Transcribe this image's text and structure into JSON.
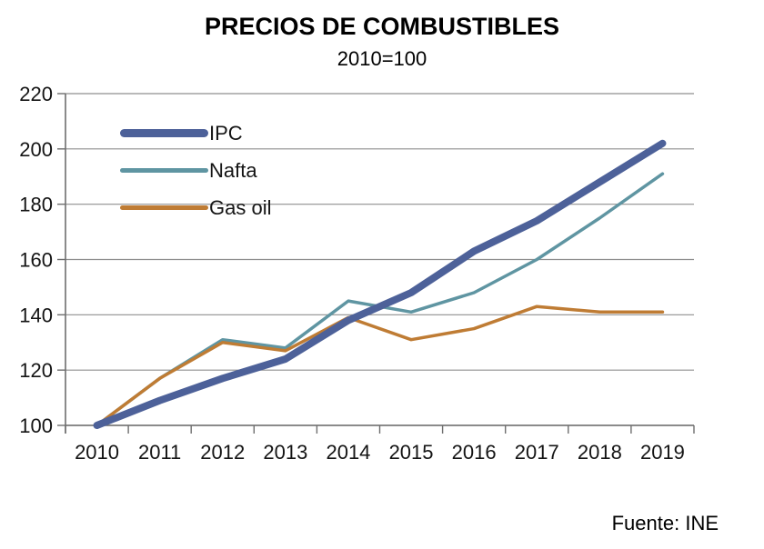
{
  "title": "PRECIOS DE COMBUSTIBLES",
  "subtitle": "2010=100",
  "source": "Fuente: INE",
  "chart_data": {
    "type": "line",
    "categories": [
      "2010",
      "2011",
      "2012",
      "2013",
      "2014",
      "2015",
      "2016",
      "2017",
      "2018",
      "2019"
    ],
    "series": [
      {
        "name": "IPC",
        "color": "#4d6199",
        "line_width": 8,
        "values": [
          100,
          109,
          117,
          124,
          138,
          148,
          163,
          174,
          188,
          202
        ]
      },
      {
        "name": "Nafta",
        "color": "#5f95a2",
        "line_width": 3.5,
        "values": [
          100,
          117,
          131,
          128,
          145,
          141,
          148,
          160,
          175,
          191
        ]
      },
      {
        "name": "Gas oil",
        "color": "#bf7c34",
        "line_width": 3.5,
        "values": [
          100,
          117,
          130,
          127,
          139,
          131,
          135,
          143,
          141,
          141
        ]
      }
    ],
    "xlabel": "",
    "ylabel": "",
    "ylim": [
      100,
      220
    ],
    "yticks": [
      100,
      120,
      140,
      160,
      180,
      200,
      220
    ],
    "grid": true,
    "legend_position": "top-left",
    "grid_color": "#8f8f8f",
    "axis_color": "#6e6e6e",
    "text_color": "#141414",
    "background": "#ffffff"
  }
}
